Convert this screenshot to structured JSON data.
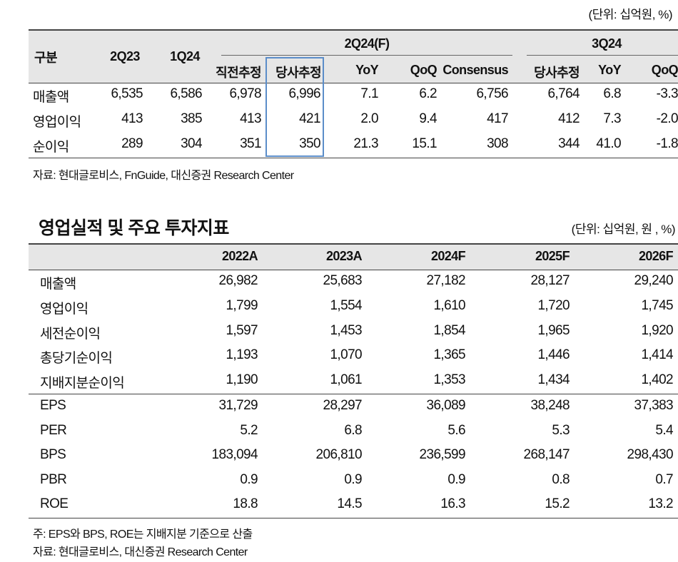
{
  "table1": {
    "unit": "(단위: 십억원, %)",
    "header": {
      "category": "구분",
      "col_2q23": "2Q23",
      "col_1q24": "1Q24",
      "group_2q24": "2Q24(F)",
      "group_3q24": "3Q24",
      "sub": [
        "직전추정",
        "당사추정",
        "YoY",
        "QoQ",
        "Consensus",
        "당사추정",
        "YoY",
        "QoQ"
      ]
    },
    "rows": [
      {
        "label": "매출액",
        "values": [
          "6,535",
          "6,586",
          "6,978",
          "6,996",
          "7.1",
          "6.2",
          "6,756",
          "6,764",
          "6.8",
          "-3.3"
        ]
      },
      {
        "label": "영업이익",
        "values": [
          "413",
          "385",
          "413",
          "421",
          "2.0",
          "9.4",
          "417",
          "412",
          "7.3",
          "-2.0"
        ]
      },
      {
        "label": "순이익",
        "values": [
          "289",
          "304",
          "351",
          "350",
          "21.3",
          "15.1",
          "308",
          "344",
          "41.0",
          "-1.8"
        ]
      }
    ],
    "source": "자료: 현대글로비스, FnGuide, 대신증권 Research Center"
  },
  "table2": {
    "title": "영업실적 및 주요 투자지표",
    "unit": "(단위: 십억원, 원 , %)",
    "columns": [
      "2022A",
      "2023A",
      "2024F",
      "2025F",
      "2026F"
    ],
    "rows_a": [
      {
        "label": "매출액",
        "values": [
          "26,982",
          "25,683",
          "27,182",
          "28,127",
          "29,240"
        ]
      },
      {
        "label": "영업이익",
        "values": [
          "1,799",
          "1,554",
          "1,610",
          "1,720",
          "1,745"
        ]
      },
      {
        "label": "세전순이익",
        "values": [
          "1,597",
          "1,453",
          "1,854",
          "1,965",
          "1,920"
        ]
      },
      {
        "label": "총당기순이익",
        "values": [
          "1,193",
          "1,070",
          "1,365",
          "1,446",
          "1,414"
        ]
      },
      {
        "label": "지배지분순이익",
        "values": [
          "1,190",
          "1,061",
          "1,353",
          "1,434",
          "1,402"
        ]
      }
    ],
    "rows_b": [
      {
        "label": "EPS",
        "values": [
          "31,729",
          "28,297",
          "36,089",
          "38,248",
          "37,383"
        ]
      },
      {
        "label": "PER",
        "values": [
          "5.2",
          "6.8",
          "5.6",
          "5.3",
          "5.4"
        ]
      },
      {
        "label": "BPS",
        "values": [
          "183,094",
          "206,810",
          "236,599",
          "268,147",
          "298,430"
        ]
      },
      {
        "label": "PBR",
        "values": [
          "0.9",
          "0.9",
          "0.9",
          "0.8",
          "0.7"
        ]
      },
      {
        "label": "ROE",
        "values": [
          "18.8",
          "14.5",
          "16.3",
          "15.2",
          "13.2"
        ]
      }
    ],
    "note": "주: EPS와 BPS, ROE는 지배지분 기준으로 산출",
    "source": "자료: 현대글로비스, 대신증권 Research Center"
  },
  "colors": {
    "header_bg": "#e6e6e6",
    "highlight_box": "#5b8dc9",
    "rule": "#444444"
  }
}
